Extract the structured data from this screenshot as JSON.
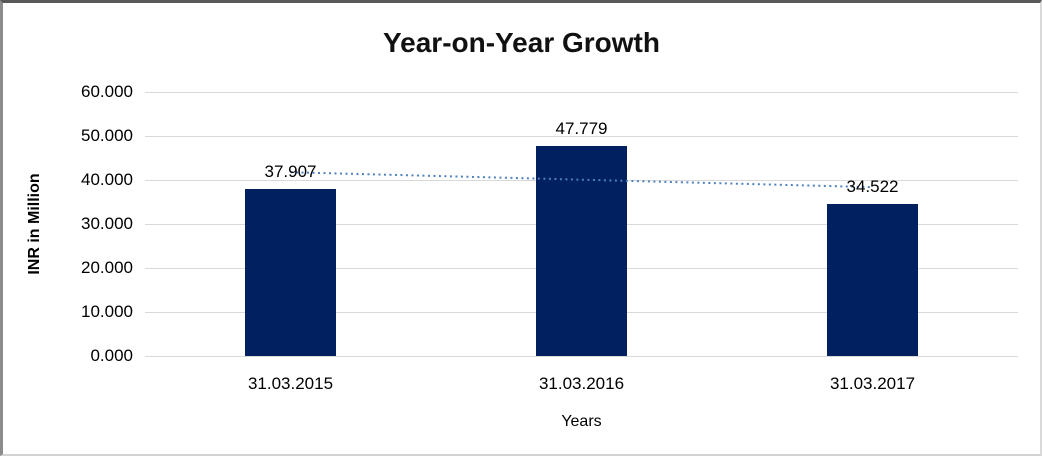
{
  "chart_data": {
    "type": "bar",
    "title": "Year-on-Year Growth",
    "categories": [
      "31.03.2015",
      "31.03.2016",
      "31.03.2017"
    ],
    "values": [
      37.907,
      47.779,
      34.522
    ],
    "data_labels": [
      "37.907",
      "47.779",
      "34.522"
    ],
    "xlabel": "Years",
    "ylabel": "INR in Million",
    "ylim": [
      0,
      60
    ],
    "yticks": [
      0,
      10,
      20,
      30,
      40,
      50,
      60
    ],
    "ytick_labels": [
      "0.000",
      "10.000",
      "20.000",
      "30.000",
      "40.000",
      "50.000",
      "60.000"
    ],
    "grid": true,
    "legend": false,
    "bar_color": "#002060",
    "gridline_color": "#d9d9d9",
    "text_color": "#000000",
    "trendline": {
      "type": "linear",
      "style": "dotted",
      "color": "#4f81bd"
    }
  }
}
